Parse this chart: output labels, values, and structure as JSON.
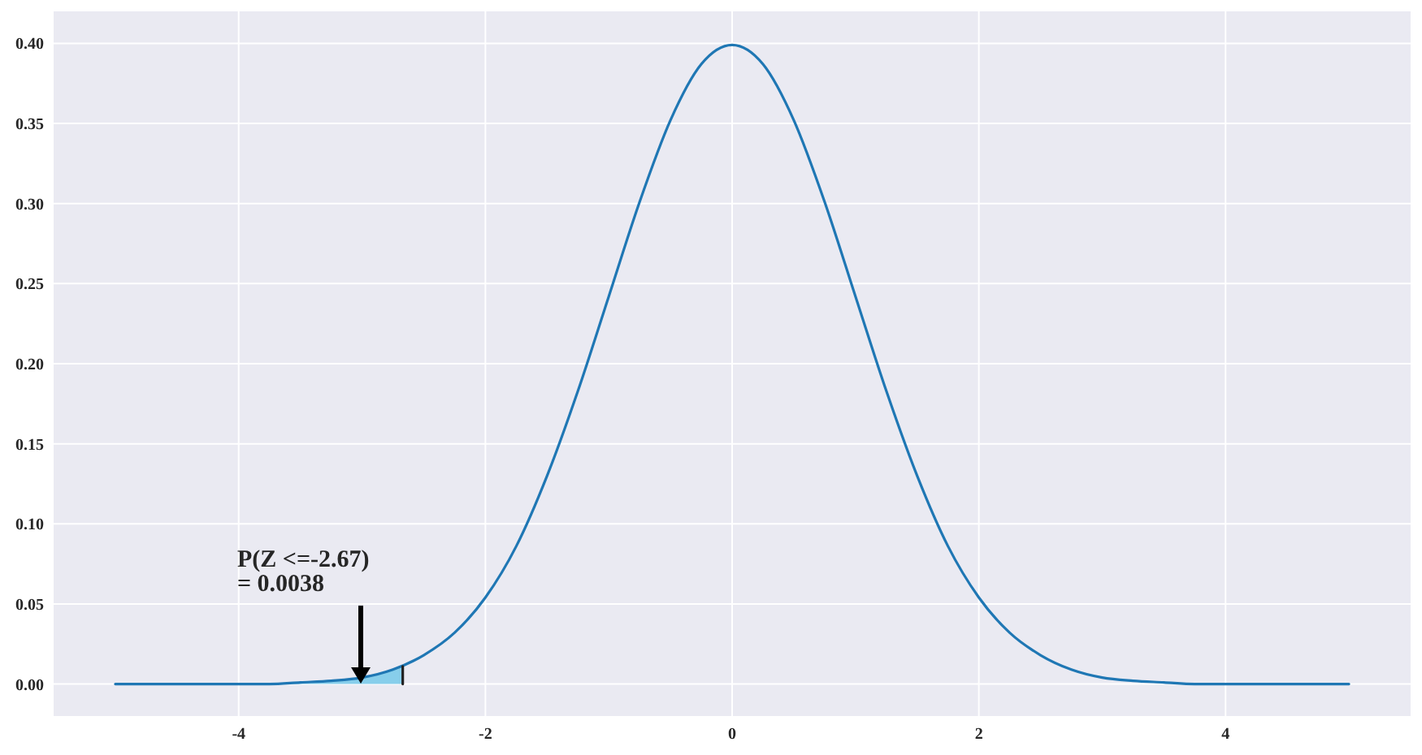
{
  "chart_data": {
    "type": "line",
    "xlim": [
      -5.5,
      5.5
    ],
    "ylim": [
      -0.02,
      0.42
    ],
    "xticks": [
      -4,
      -2,
      0,
      2,
      4
    ],
    "yticks": [
      {
        "value": 0,
        "label": "0.00"
      },
      {
        "value": 0.05,
        "label": "0.05"
      },
      {
        "value": 0.1,
        "label": "0.10"
      },
      {
        "value": 0.15,
        "label": "0.15"
      },
      {
        "value": 0.2,
        "label": "0.20"
      },
      {
        "value": 0.25,
        "label": "0.25"
      },
      {
        "value": 0.3,
        "label": "0.30"
      },
      {
        "value": 0.35,
        "label": "0.35"
      },
      {
        "value": 0.4,
        "label": "0.40"
      }
    ],
    "grid": true,
    "series": [
      {
        "type": "area",
        "color": "#87ceeb",
        "x": [
          -5,
          -4.5,
          -4,
          -3.5,
          -3,
          -2.67
        ],
        "values": [
          0,
          0,
          0,
          0.001,
          0.004,
          0.011
        ]
      },
      {
        "color": "#1f77b4",
        "x": [
          -5,
          -4.75,
          -4.5,
          -4.25,
          -4,
          -3.75,
          -3.5,
          -3.25,
          -3,
          -2.75,
          -2.5,
          -2.25,
          -2,
          -1.75,
          -1.5,
          -1.25,
          -1,
          -0.75,
          -0.5,
          -0.25,
          0,
          0.25,
          0.5,
          0.75,
          1,
          1.25,
          1.5,
          1.75,
          2,
          2.25,
          2.5,
          2.75,
          3,
          3.25,
          3.5,
          3.75,
          4,
          4.25,
          4.5,
          4.75,
          5
        ],
        "values": [
          0,
          0,
          0,
          0,
          0,
          0,
          0.001,
          0.002,
          0.004,
          0.009,
          0.018,
          0.032,
          0.054,
          0.086,
          0.13,
          0.183,
          0.242,
          0.301,
          0.352,
          0.387,
          0.399,
          0.387,
          0.352,
          0.301,
          0.242,
          0.183,
          0.13,
          0.086,
          0.054,
          0.032,
          0.018,
          0.009,
          0.004,
          0.002,
          0.001,
          0,
          0,
          0,
          0,
          0,
          0
        ]
      },
      {
        "type": "line",
        "color": "#222222",
        "x": [
          -2.67,
          -2.67
        ],
        "values": [
          0,
          0.011
        ]
      }
    ],
    "annotations": [
      "P(Z <=-2.67)\n= 0.0038"
    ]
  }
}
